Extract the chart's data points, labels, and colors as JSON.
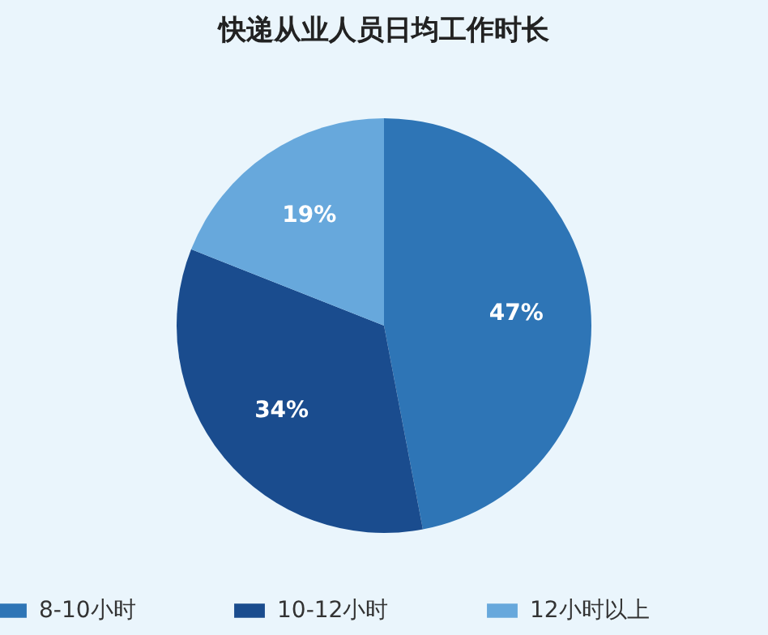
{
  "chart_data": {
    "type": "pie",
    "title": "快递从业人员日均工作时长",
    "categories": [
      "8-10小时",
      "10-12小时",
      "12小时以上"
    ],
    "values": [
      47,
      34,
      19
    ],
    "colors": [
      "#2e75b6",
      "#1a4c8e",
      "#67a8dc"
    ],
    "value_labels": [
      "47%",
      "34%",
      "19%"
    ],
    "legend": "bottom"
  }
}
